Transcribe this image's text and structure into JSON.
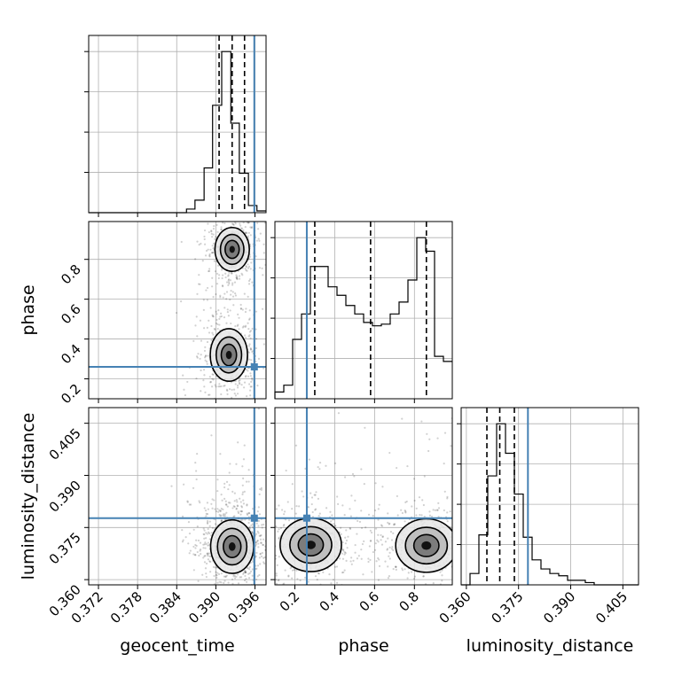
{
  "colors": {
    "truth": "#4682b4",
    "grid": "#b0b0b0",
    "hist": "#000000",
    "points": "#000000"
  },
  "params": [
    "geocent_time",
    "phase",
    "luminosity_distance"
  ],
  "axis_labels": {
    "geocent_time": "geocent_time",
    "phase": "phase",
    "luminosity_distance": "luminosity_distance"
  },
  "chart_data": {
    "type": "corner",
    "truths": {
      "geocent_time": 0.3959,
      "phase": 0.26,
      "luminosity_distance": 0.3777
    },
    "quantiles": {
      "geocent_time": [
        0.3905,
        0.3925,
        0.3944
      ],
      "phase": [
        0.3,
        0.58,
        0.86
      ],
      "luminosity_distance": [
        0.3659,
        0.3696,
        0.3738
      ]
    },
    "ranges": {
      "geocent_time": [
        0.3705,
        0.3977
      ],
      "phase": [
        0.1,
        0.99
      ],
      "luminosity_distance": [
        0.3585,
        0.4095
      ]
    },
    "ticks": {
      "geocent_time": [
        "0.372",
        "0.378",
        "0.384",
        "0.390",
        "0.396"
      ],
      "phase": [
        "0.2",
        "0.4",
        "0.6",
        "0.8"
      ],
      "luminosity_distance": [
        "0.360",
        "0.375",
        "0.390",
        "0.405"
      ]
    },
    "tick_values": {
      "geocent_time": [
        0.372,
        0.378,
        0.384,
        0.39,
        0.396
      ],
      "phase": [
        0.2,
        0.4,
        0.6,
        0.8
      ],
      "luminosity_distance": [
        0.36,
        0.375,
        0.39,
        0.405
      ]
    },
    "histograms": {
      "geocent_time": {
        "edges": [
          0.3705,
          0.3719,
          0.3732,
          0.3746,
          0.3759,
          0.3773,
          0.3787,
          0.38,
          0.3814,
          0.3827,
          0.3841,
          0.3855,
          0.3868,
          0.3882,
          0.3895,
          0.3909,
          0.3923,
          0.3936,
          0.395,
          0.3963,
          0.3977
        ],
        "counts": [
          0,
          0,
          0,
          0,
          0,
          0,
          0,
          0,
          0,
          0,
          0,
          2,
          7,
          25,
          60,
          90,
          50,
          22,
          4,
          1
        ]
      },
      "phase": {
        "edges": [
          0.1,
          0.1445,
          0.189,
          0.2335,
          0.278,
          0.3225,
          0.367,
          0.4115,
          0.456,
          0.5005,
          0.545,
          0.5895,
          0.634,
          0.6785,
          0.723,
          0.7675,
          0.812,
          0.8565,
          0.901,
          0.9455,
          0.99
        ],
        "counts": [
          4,
          8,
          35,
          50,
          78,
          78,
          66,
          61,
          55,
          50,
          45,
          43,
          44,
          50,
          57,
          70,
          95,
          87,
          25,
          22
        ]
      },
      "luminosity_distance": {
        "edges": [
          0.3585,
          0.36105,
          0.3636,
          0.36615,
          0.3687,
          0.37125,
          0.3738,
          0.37635,
          0.3789,
          0.38145,
          0.384,
          0.38655,
          0.3891,
          0.39165,
          0.3942,
          0.39675,
          0.3993,
          0.40185,
          0.4044,
          0.40695,
          0.4095
        ],
        "counts": [
          0,
          5,
          22,
          48,
          71,
          58,
          40,
          21,
          11,
          7,
          5,
          4,
          2,
          2,
          1,
          0,
          0,
          0,
          0,
          0
        ]
      }
    },
    "density_modes": [
      {
        "x": "geocent_time",
        "y": "phase",
        "peaks": [
          [
            0.3925,
            0.85,
            0.0012,
            0.05
          ],
          [
            0.392,
            0.32,
            0.0013,
            0.06
          ]
        ]
      },
      {
        "x": "geocent_time",
        "y": "luminosity_distance",
        "peaks": [
          [
            0.3925,
            0.3695,
            0.0015,
            0.0035
          ]
        ]
      },
      {
        "x": "phase",
        "y": "luminosity_distance",
        "peaks": [
          [
            0.28,
            0.37,
            0.07,
            0.0035
          ],
          [
            0.86,
            0.3698,
            0.07,
            0.0035
          ]
        ]
      }
    ],
    "grid": true
  }
}
